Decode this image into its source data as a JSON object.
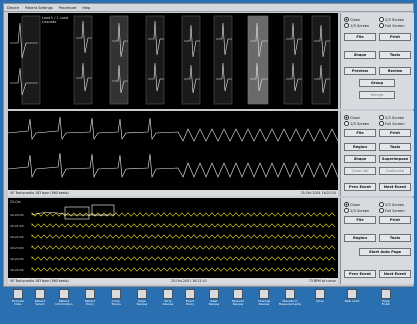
{
  "menu": [
    "Device",
    "Patient Settings",
    "Procedure",
    "Help"
  ],
  "pane1": {
    "info_line1": "Lead II / 1 Lead",
    "info_line2": "Cascade",
    "controls": {
      "radio_close": "Close",
      "radio_two_thirds": "2/3 Screen",
      "radio_one_third": "1/3 Screen",
      "radio_full": "Full Screen",
      "btn_file": "File",
      "btn_print": "Print",
      "btn_shape": "Shape",
      "btn_tools": "Tools",
      "btn_preview": "Preview",
      "btn_review": "Review",
      "btn_group": "Group",
      "btn_merge": "Merge"
    }
  },
  "pane2": {
    "status_left": "VE Tachycardia  183 bpm  (560 beats)",
    "status_right": "25-Oct-2001 16:22:10",
    "controls": {
      "radio_close": "Close",
      "radio_two_thirds": "2/3 Screen",
      "radio_one_third": "1/3 Screen",
      "radio_full": "Full Screen",
      "btn_file": "File",
      "btn_print": "Print",
      "btn_region": "Region",
      "btn_tools": "Tools",
      "btn_shape": "Shape",
      "btn_superimpose": "Superimpose",
      "btn_clear_all": "Clear All",
      "btn_calibrate": "Calibrate",
      "btn_prev_event": "Prev Event",
      "btn_next_event": "Next Event"
    }
  },
  "pane3": {
    "date": "25-Oct",
    "times": [
      "16:20:00",
      "16:21:00",
      "16:22:00",
      "16:23:00",
      "16:24:00",
      "16:25:00",
      "16:26:00"
    ],
    "status_left": "VE Tachycardia  183 bpm  (560 beats)",
    "status_mid": "25-Oct-2001 16:22:10",
    "status_right": "73 BPM at cursor",
    "controls": {
      "radio_close": "Close",
      "radio_two_thirds": "2/3 Screen",
      "radio_one_third": "1/3 Screen",
      "radio_full": "Full Screen",
      "btn_file": "File",
      "btn_print": "Print",
      "btn_region": "Region",
      "btn_tools": "Tools",
      "btn_start_auto": "Start Auto Page",
      "btn_prev_event": "Prev Event",
      "btn_next_event": "Next Event"
    }
  },
  "taskbar": [
    {
      "label": "Exclude Data",
      "icon": "exclude-icon"
    },
    {
      "label": "Patient Select",
      "icon": "patient-icon"
    },
    {
      "label": "Patient Information",
      "icon": "info-icon"
    },
    {
      "label": "Patient Diary",
      "icon": "diary-icon"
    },
    {
      "label": "Drop Traces",
      "icon": "traces-icon"
    },
    {
      "label": "Page Review",
      "icon": "page-icon"
    },
    {
      "label": "Strip Review",
      "icon": "strip-icon"
    },
    {
      "label": "Event Diary",
      "icon": "event-icon"
    },
    {
      "label": "Beat Review",
      "icon": "beat-icon"
    },
    {
      "label": "Episode Review",
      "icon": "episode-icon"
    },
    {
      "label": "Channel Review",
      "icon": "channel-icon"
    },
    {
      "label": "Waveform Measurements",
      "icon": "measure-icon"
    },
    {
      "label": "More",
      "icon": "more-icon"
    },
    {
      "label": "Web Alert",
      "icon": "web-icon"
    },
    {
      "label": "Page Finish",
      "icon": "finish-icon"
    }
  ]
}
